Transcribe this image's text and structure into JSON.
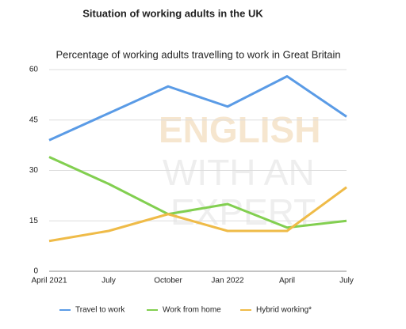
{
  "chart_data": {
    "type": "line",
    "title": "Situation of working adults in the UK",
    "subtitle": "Percentage of working adults travelling to work in Great Britain",
    "watermark": [
      "ENGLISH",
      "WITH AN",
      "EXPERT"
    ],
    "categories": [
      "April 2021",
      "July",
      "October",
      "Jan 2022",
      "April",
      "July"
    ],
    "series": [
      {
        "name": "Travel to work",
        "color": "#5a9be6",
        "values": [
          39,
          47,
          55,
          49,
          58,
          46
        ]
      },
      {
        "name": "Work from home",
        "color": "#82cf50",
        "values": [
          34,
          26,
          17,
          20,
          13,
          15
        ]
      },
      {
        "name": "Hybrid working*",
        "color": "#efbb48",
        "values": [
          9,
          12,
          17,
          12,
          12,
          25
        ]
      }
    ],
    "ylim": [
      0,
      60
    ],
    "yticks": [
      0,
      15,
      30,
      45,
      60
    ],
    "grid": true,
    "legend": "bottom"
  }
}
